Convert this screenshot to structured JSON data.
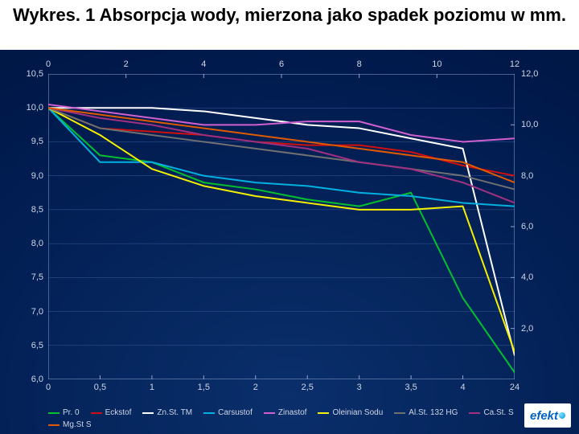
{
  "title": "Wykres. 1 Absorpcja wody, mierzona jako spadek poziomu w mm.",
  "chart": {
    "type": "line",
    "background_color_top": "#001a4d",
    "background_color_center": "#0a2f6b",
    "grid_color": "#3a5b9a",
    "axis_color": "#8fa6cf",
    "axis_label_color": "#cfd6e6",
    "axis_fontsize": 11,
    "line_width": 2,
    "top_axis": {
      "ticks": [
        0,
        2,
        4,
        6,
        8,
        10,
        12
      ],
      "range": [
        0,
        12
      ]
    },
    "bottom_axis": {
      "ticks": [
        0,
        0.5,
        1,
        1.5,
        2,
        2.5,
        3,
        3.5,
        4,
        24
      ],
      "labels": [
        "0",
        "0,5",
        "1",
        "1,5",
        "2",
        "2,5",
        "3",
        "3,5",
        "4",
        "24"
      ],
      "range_index": [
        0,
        9
      ]
    },
    "left_axis": {
      "ticks": [
        6.0,
        6.5,
        7.0,
        7.5,
        8.0,
        8.5,
        9.0,
        9.5,
        10.0,
        10.5
      ],
      "labels": [
        "6,0",
        "6,5",
        "7,0",
        "7,5",
        "8,0",
        "8,5",
        "9,0",
        "9,5",
        "10,0",
        "10,5"
      ],
      "range": [
        6.0,
        10.5
      ]
    },
    "right_axis": {
      "ticks": [
        2.0,
        4.0,
        6.0,
        8.0,
        10.0,
        12.0
      ],
      "labels": [
        "2,0",
        "4,0",
        "6,0",
        "8,0",
        "10,0",
        "12,0"
      ],
      "range": [
        0.0,
        12.0
      ]
    },
    "x_index": [
      0,
      1,
      2,
      3,
      4,
      5,
      6,
      7,
      8,
      9
    ],
    "series": [
      {
        "name": "Pr. 0",
        "color": "#00c030",
        "y": [
          10.0,
          9.3,
          9.2,
          8.9,
          8.8,
          8.65,
          8.55,
          8.75,
          7.2,
          6.1
        ]
      },
      {
        "name": "Eckstof",
        "color": "#d01010",
        "y": [
          10.0,
          9.7,
          9.65,
          9.6,
          9.5,
          9.45,
          9.45,
          9.35,
          9.15,
          9.0
        ]
      },
      {
        "name": "Zn.St. TM",
        "color": "#ffffff",
        "y": [
          10.0,
          10.0,
          10.0,
          9.95,
          9.85,
          9.75,
          9.7,
          9.55,
          9.4,
          6.35
        ]
      },
      {
        "name": "Carsustof",
        "color": "#00b0e0",
        "y": [
          10.0,
          9.2,
          9.2,
          9.0,
          8.9,
          8.85,
          8.75,
          8.7,
          8.6,
          8.55
        ]
      },
      {
        "name": "Zinastof",
        "color": "#d060d0",
        "y": [
          10.05,
          9.95,
          9.85,
          9.75,
          9.75,
          9.8,
          9.8,
          9.6,
          9.5,
          9.55
        ]
      },
      {
        "name": "Oleinian Sodu",
        "color": "#f5f000",
        "y": [
          10.0,
          9.6,
          9.1,
          8.85,
          8.7,
          8.6,
          8.5,
          8.5,
          8.55,
          6.4
        ]
      },
      {
        "name": "Al.St. 132 HG",
        "color": "#707070",
        "y": [
          10.0,
          9.7,
          9.6,
          9.5,
          9.4,
          9.3,
          9.2,
          9.1,
          9.0,
          8.8
        ]
      },
      {
        "name": "Ca.St. S",
        "color": "#a03080",
        "y": [
          10.0,
          9.85,
          9.75,
          9.6,
          9.5,
          9.4,
          9.2,
          9.1,
          8.9,
          8.6
        ]
      },
      {
        "name": "Mg.St S",
        "color": "#e05a00",
        "y": [
          10.0,
          9.9,
          9.8,
          9.7,
          9.6,
          9.5,
          9.4,
          9.3,
          9.2,
          8.9
        ]
      }
    ],
    "legend": {
      "fontsize": 10,
      "text_color": "#cfd6e6",
      "swatch_width": 14
    }
  },
  "logo": {
    "text": "efekt",
    "text_color": "#0061c2",
    "bg": "#ffffff"
  }
}
